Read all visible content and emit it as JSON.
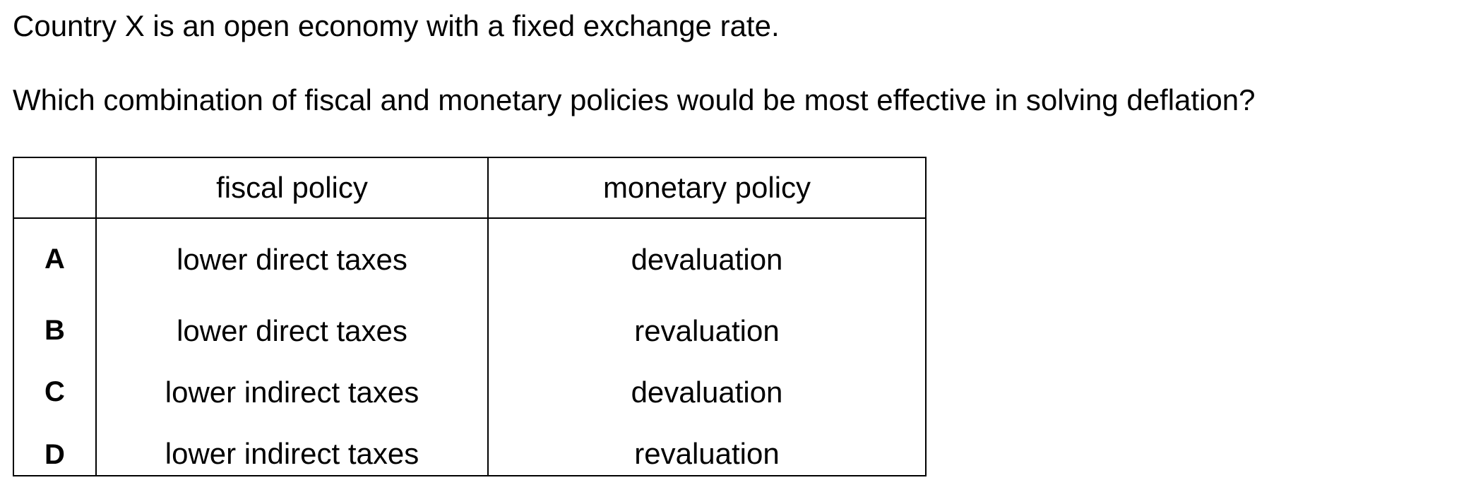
{
  "question": {
    "stem_line_1": "Country X is an open economy with a fixed exchange rate.",
    "stem_line_2": "Which combination of fiscal and monetary policies would be most effective in solving deflation?"
  },
  "table": {
    "headers": {
      "key": "",
      "fiscal": "fiscal policy",
      "monetary": "monetary policy"
    },
    "rows": [
      {
        "key": "A",
        "fiscal": "lower direct taxes",
        "monetary": "devaluation"
      },
      {
        "key": "B",
        "fiscal": "lower direct taxes",
        "monetary": "revaluation"
      },
      {
        "key": "C",
        "fiscal": "lower indirect taxes",
        "monetary": "devaluation"
      },
      {
        "key": "D",
        "fiscal": "lower indirect taxes",
        "monetary": "revaluation"
      }
    ]
  }
}
